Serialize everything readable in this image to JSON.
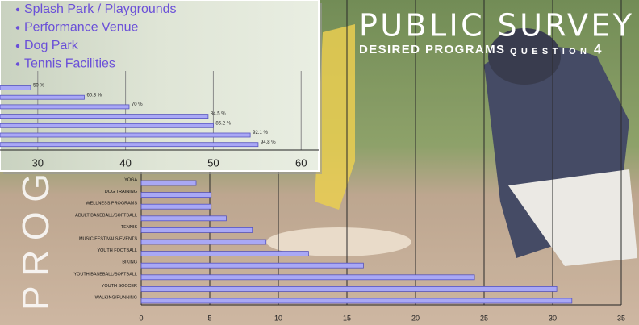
{
  "slide": {
    "title": "PUBLIC SURVEY",
    "subtitle": "DESIRED PROGRAMS",
    "question_label": "QUESTION",
    "question_number": "4",
    "side_text": "PROG"
  },
  "inset": {
    "bullets": [
      "Splash Park / Playgrounds",
      "Performance Venue",
      "Dog Park",
      "Tennis Facilities"
    ]
  },
  "chart_data": [
    {
      "type": "bar",
      "orientation": "horizontal",
      "categories": [
        "YOGA",
        "DOG TRAINING",
        "WELLNESS PROGRAMS",
        "ADULT BASEBALL/SOFTBALL",
        "TENNIS",
        "MUSIC FESTIVALS/EVENTS",
        "YOUTH FOOTBALL",
        "BIKING",
        "YOUTH BASEBALL/SOFTBALL",
        "YOUTH SOCCER",
        "WALKING/RUNNING"
      ],
      "values": [
        4,
        5.1,
        5.1,
        6.2,
        8.1,
        9.1,
        12.2,
        16.2,
        24.3,
        30.3,
        31.4
      ],
      "color": "#a9a8f5",
      "xlim": [
        0,
        35
      ],
      "xticks": [
        0,
        5,
        10,
        15,
        20,
        25,
        30,
        35
      ],
      "grid": true
    },
    {
      "type": "bar",
      "orientation": "horizontal",
      "values": [
        29.2,
        35.3,
        40.4,
        49.4,
        50,
        54.2,
        55.1
      ],
      "bar_labels": [
        "50 %",
        "60.3 %",
        "70 %",
        "84.5 %",
        "86.2 %",
        "92.1 %",
        "94.8 %"
      ],
      "color": "#a9a8f5",
      "xlim": [
        25.7,
        62
      ],
      "xticks": [
        30,
        40,
        50,
        60
      ],
      "grid": true
    }
  ]
}
